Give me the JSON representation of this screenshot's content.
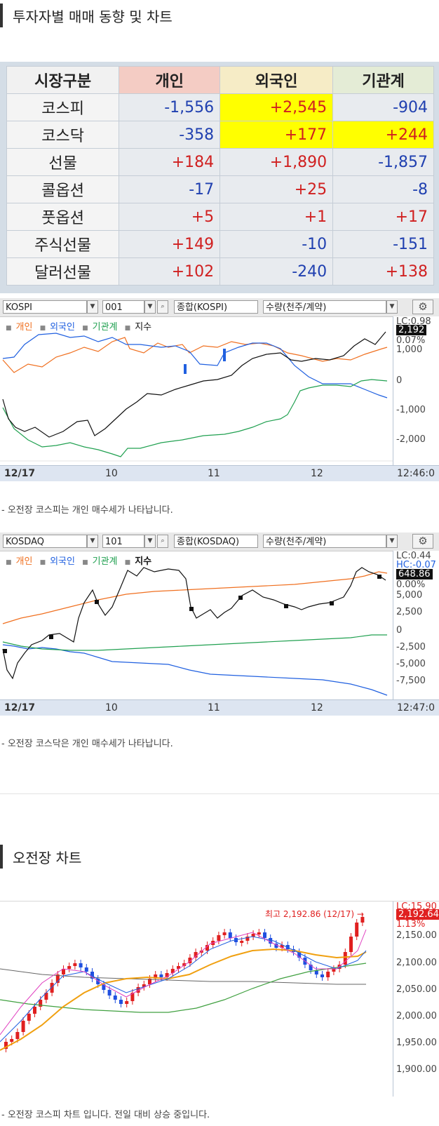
{
  "section1": {
    "title": "투자자별 매매 동향 및 차트"
  },
  "investor_table": {
    "headers": [
      "시장구분",
      "개인",
      "외국인",
      "기관계"
    ],
    "rows": [
      {
        "market": "코스피",
        "individual": "-1,556",
        "foreign": "+2,545",
        "institution": "-904"
      },
      {
        "market": "코스닥",
        "individual": "-358",
        "foreign": "+177",
        "institution": "+244"
      },
      {
        "market": "선물",
        "individual": "+184",
        "foreign": "+1,890",
        "institution": "-1,857"
      },
      {
        "market": "콜옵션",
        "individual": "-17",
        "foreign": "+25",
        "institution": "-8"
      },
      {
        "market": "풋옵션",
        "individual": "+5",
        "foreign": "+1",
        "institution": "+17"
      },
      {
        "market": "주식선물",
        "individual": "+149",
        "foreign": "-10",
        "institution": "-151"
      },
      {
        "market": "달러선물",
        "individual": "+102",
        "foreign": "-240",
        "institution": "+138"
      }
    ],
    "highlighted_cells": [
      "코스피.foreign",
      "코스닥.foreign",
      "코스닥.institution"
    ],
    "colors": {
      "positive": "#d02020",
      "negative": "#2040b0",
      "highlight": "#ffff00"
    }
  },
  "kospi_chart": {
    "toolbar": {
      "market": "KOSPI",
      "code": "001",
      "name": "종합(KOSPI)",
      "unit": "수량(천주/계약)"
    },
    "legend": {
      "individual": "개인",
      "foreign": "외국인",
      "institution": "기관계",
      "index": "지수"
    },
    "y_labels": [
      "LC:0.98",
      "2,192",
      "0.07%",
      "1,000",
      "0",
      "-1,000",
      "-2,000"
    ],
    "x_labels": [
      "12/17",
      "10",
      "11",
      "12"
    ],
    "time": "12:46:0",
    "caption": "- 오전장 코스피는 개인 매수세가 나타납니다."
  },
  "kosdaq_chart": {
    "toolbar": {
      "market": "KOSDAQ",
      "code": "101",
      "name": "종합(KOSDAQ)",
      "unit": "수량(천주/계약)"
    },
    "legend": {
      "individual": "개인",
      "foreign": "외국인",
      "institution": "기관계",
      "index": "지수"
    },
    "y_labels": [
      "LC:0.44",
      "HC:-0.07",
      "648.86",
      "0.00%",
      "5,000",
      "2,500",
      "0",
      "-2,500",
      "-5,000",
      "-7,500"
    ],
    "x_labels": [
      "12/17",
      "10",
      "11",
      "12"
    ],
    "time": "12:47:0",
    "caption": "- 오전장 코스닥은 개인 매수세가 나타납니다."
  },
  "section2": {
    "title": "오전장 차트"
  },
  "candle_chart": {
    "high_label": "최고 2,192.86 (12/17) →",
    "y_labels": [
      "LC:15.90",
      "2,192.64",
      "1.13%",
      "2,150.00",
      "2,100.00",
      "2,050.00",
      "2,000.00",
      "1,950.00",
      "1,900.00"
    ],
    "caption": "- 오전장 코스피 차트 입니다. 전일 대비 상승 중입니다."
  },
  "colors": {
    "individual": "#f07020",
    "foreign": "#2060e0",
    "institution": "#20a050",
    "index": "#111111",
    "up": "#e02020",
    "down": "#2050e0",
    "ma5": "#e040c0",
    "ma20": "#f0a010",
    "ma60": "#40a040"
  }
}
